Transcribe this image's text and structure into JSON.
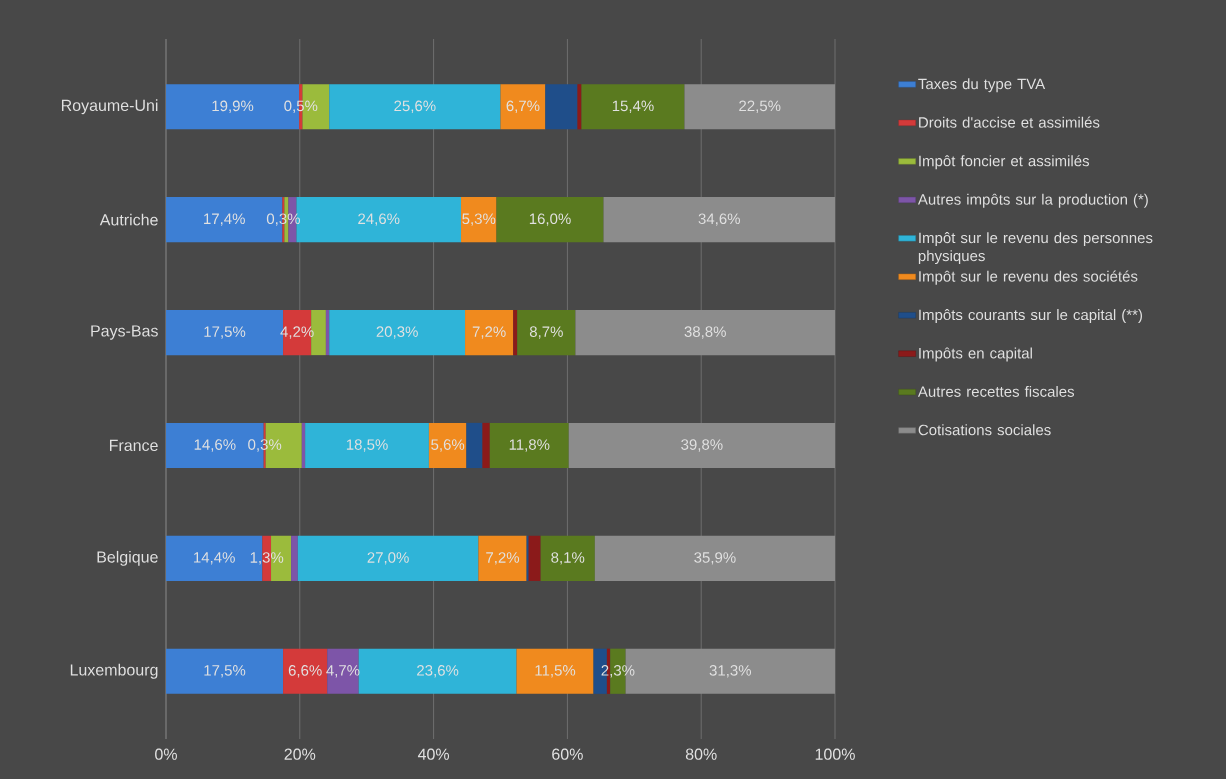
{
  "chart_data": {
    "type": "bar",
    "orientation": "horizontal",
    "stacked": true,
    "categories": [
      "Royaume-Uni",
      "Autriche",
      "Pays-Bas",
      "France",
      "Belgique",
      "Luxembourg"
    ],
    "xlim": [
      0,
      100
    ],
    "xticks": [
      {
        "value": 0,
        "label": "0%"
      },
      {
        "value": 20,
        "label": "20%"
      },
      {
        "value": 40,
        "label": "40%"
      },
      {
        "value": 60,
        "label": "60%"
      },
      {
        "value": 80,
        "label": "80%"
      },
      {
        "value": 100,
        "label": "100%"
      }
    ],
    "grid": "x",
    "legend": "right",
    "series": [
      {
        "name": "Taxes du type TVA",
        "color": "#3d7fd4",
        "values": [
          19.9,
          17.4,
          17.5,
          14.6,
          14.4,
          17.5
        ],
        "value_labels": [
          "19,9%",
          "17,4%",
          "17,5%",
          "14,6%",
          "14,4%",
          "17,5%"
        ]
      },
      {
        "name": "Droits d'accise et assimilés",
        "color": "#d43a3a",
        "values": [
          0.5,
          0.3,
          4.2,
          0.3,
          1.3,
          6.6
        ],
        "value_labels": [
          "0,5%",
          "0,3%",
          "4,2%",
          "0,3%",
          "1,3%",
          "6,6%"
        ]
      },
      {
        "name": "Impôt foncier et assimilés",
        "color": "#9bbb3c",
        "values": [
          4.0,
          0.6,
          2.2,
          5.4,
          3.0,
          null
        ],
        "value_labels": [
          null,
          null,
          null,
          null,
          null,
          null
        ]
      },
      {
        "name": "Autres impôts sur la production (*)",
        "color": "#7d55a8",
        "values": [
          null,
          1.2,
          0.5,
          0.5,
          1.0,
          4.7
        ],
        "value_labels": [
          null,
          null,
          null,
          null,
          null,
          "4,7%"
        ]
      },
      {
        "name": "Impôt sur le revenu des personnes physiques",
        "color": "#2fb4d8",
        "values": [
          25.6,
          24.6,
          20.3,
          18.5,
          27.0,
          23.6
        ],
        "value_labels": [
          "25,6%",
          "24,6%",
          "20,3%",
          "18,5%",
          "27,0%",
          "23,6%"
        ]
      },
      {
        "name": "Impôt sur le revenu des sociétés",
        "color": "#f08a1e",
        "values": [
          6.7,
          5.3,
          7.2,
          5.6,
          7.2,
          11.5
        ],
        "value_labels": [
          "6,7%",
          "5,3%",
          "7,2%",
          "5,6%",
          "7,2%",
          "11,5%"
        ]
      },
      {
        "name": "Impôts courants sur le capital (**)",
        "color": "#1f4e8a",
        "values": [
          4.8,
          null,
          null,
          2.4,
          0.3,
          2.0
        ],
        "value_labels": [
          null,
          null,
          null,
          null,
          null,
          null
        ]
      },
      {
        "name": "Impôts en capital",
        "color": "#8b1a1a",
        "values": [
          0.6,
          null,
          0.6,
          1.1,
          1.8,
          0.5
        ],
        "value_labels": [
          null,
          null,
          null,
          null,
          null,
          null
        ]
      },
      {
        "name": "Autres recettes fiscales",
        "color": "#5a7a1f",
        "values": [
          15.4,
          16.0,
          8.7,
          11.8,
          8.1,
          2.3
        ],
        "value_labels": [
          "15,4%",
          "16,0%",
          "8,7%",
          "11,8%",
          "8,1%",
          "2,3%"
        ]
      },
      {
        "name": "Cotisations sociales",
        "color": "#8c8c8c",
        "values": [
          22.5,
          34.6,
          38.8,
          39.8,
          35.9,
          31.3
        ],
        "value_labels": [
          "22,5%",
          "34,6%",
          "38,8%",
          "39,8%",
          "35,9%",
          "31,3%"
        ]
      }
    ]
  }
}
